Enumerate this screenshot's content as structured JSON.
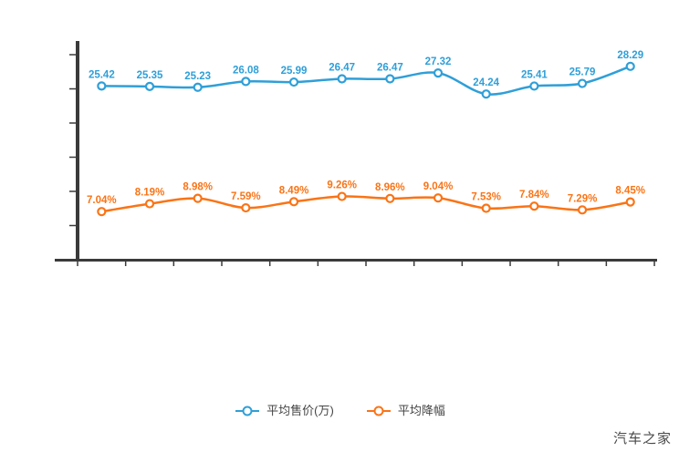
{
  "chart_data": {
    "type": "line",
    "title": "",
    "categories": [],
    "num_points": 12,
    "series": [
      {
        "name": "平均售价(万)",
        "color": "#2f9fd8",
        "label_suffix": "",
        "values": [
          25.42,
          25.35,
          25.23,
          26.08,
          25.99,
          26.47,
          26.47,
          27.32,
          24.24,
          25.41,
          25.79,
          28.29
        ]
      },
      {
        "name": "平均降幅",
        "color": "#fa7416",
        "label_suffix": "%",
        "values": [
          7.04,
          8.19,
          8.98,
          7.59,
          8.49,
          9.26,
          8.96,
          9.04,
          7.53,
          7.84,
          7.29,
          8.45
        ]
      }
    ],
    "ylim": [
      0,
      32
    ],
    "y_tick_step": 5,
    "axis_color": "#3a3a3a",
    "grid": false,
    "legend_position": "bottom",
    "x_tick_labels_visible": false,
    "y_tick_labels_visible": false,
    "smooth": true,
    "point_style": "hollow-circle"
  },
  "watermark": "汽车之家"
}
